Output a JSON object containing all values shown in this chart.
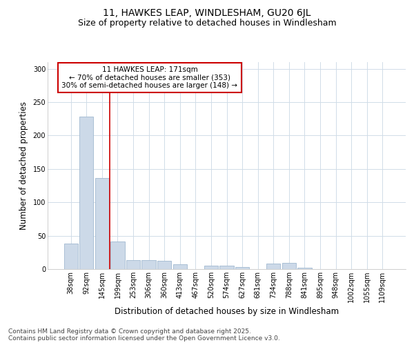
{
  "title_line1": "11, HAWKES LEAP, WINDLESHAM, GU20 6JL",
  "title_line2": "Size of property relative to detached houses in Windlesham",
  "xlabel": "Distribution of detached houses by size in Windlesham",
  "ylabel": "Number of detached properties",
  "categories": [
    "38sqm",
    "92sqm",
    "145sqm",
    "199sqm",
    "253sqm",
    "306sqm",
    "360sqm",
    "413sqm",
    "467sqm",
    "520sqm",
    "574sqm",
    "627sqm",
    "681sqm",
    "734sqm",
    "788sqm",
    "841sqm",
    "895sqm",
    "948sqm",
    "1002sqm",
    "1055sqm",
    "1109sqm"
  ],
  "values": [
    38,
    228,
    136,
    41,
    13,
    13,
    12,
    7,
    0,
    5,
    5,
    3,
    0,
    8,
    9,
    2,
    0,
    0,
    0,
    0,
    0
  ],
  "bar_color": "#ccd9e8",
  "bar_edge_color": "#a0b8d0",
  "vline_x": 2.5,
  "vline_color": "#cc0000",
  "annotation_text": "11 HAWKES LEAP: 171sqm\n← 70% of detached houses are smaller (353)\n30% of semi-detached houses are larger (148) →",
  "annotation_box_color": "#ffffff",
  "annotation_box_edge_color": "#cc0000",
  "ylim": [
    0,
    310
  ],
  "yticks": [
    0,
    50,
    100,
    150,
    200,
    250,
    300
  ],
  "footer_text": "Contains HM Land Registry data © Crown copyright and database right 2025.\nContains public sector information licensed under the Open Government Licence v3.0.",
  "bg_color": "#ffffff",
  "plot_bg_color": "#ffffff",
  "grid_color": "#d0dce8",
  "title_fontsize": 10,
  "subtitle_fontsize": 9,
  "axis_label_fontsize": 8.5,
  "tick_fontsize": 7,
  "footer_fontsize": 6.5,
  "annotation_fontsize": 7.5
}
